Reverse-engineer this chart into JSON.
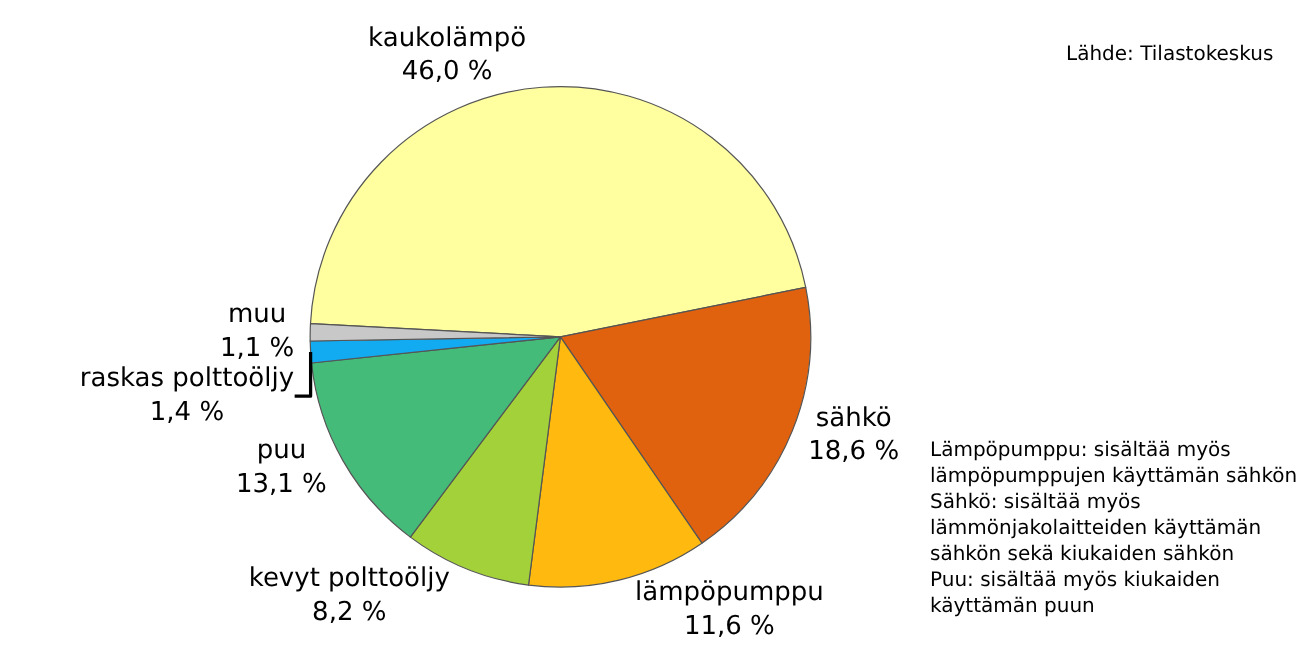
{
  "chart_data": {
    "type": "pie",
    "categories": [
      "kaukolämpö",
      "sähkö",
      "lämpöpumppu",
      "kevyt polttoöljy",
      "puu",
      "raskas polttoöljy",
      "muu"
    ],
    "values": [
      46.0,
      18.6,
      11.6,
      8.2,
      13.1,
      1.4,
      1.1
    ],
    "value_labels": [
      "46,0 %",
      "18,6 %",
      "11,6 %",
      "8,2 %",
      "13,1 %",
      "1,4 %",
      "1,1 %"
    ],
    "colors": [
      "#ffffa0",
      "#e0610e",
      "#ffb90f",
      "#a3d139",
      "#45bb7a",
      "#12aaf0",
      "#c8c8c8"
    ],
    "annotations": [
      "Lähde: Tilastokeskus",
      "Lämpöpumppu: sisältää myös lämpöpumppujen käyttämän sähkön",
      "Sähkö: sisältää myös lämmönjakolaitteiden käyttämän sähkön sekä kiukaiden sähkön",
      "Puu: sisältää myös kiukaiden käyttämän puun"
    ],
    "legend": false
  }
}
